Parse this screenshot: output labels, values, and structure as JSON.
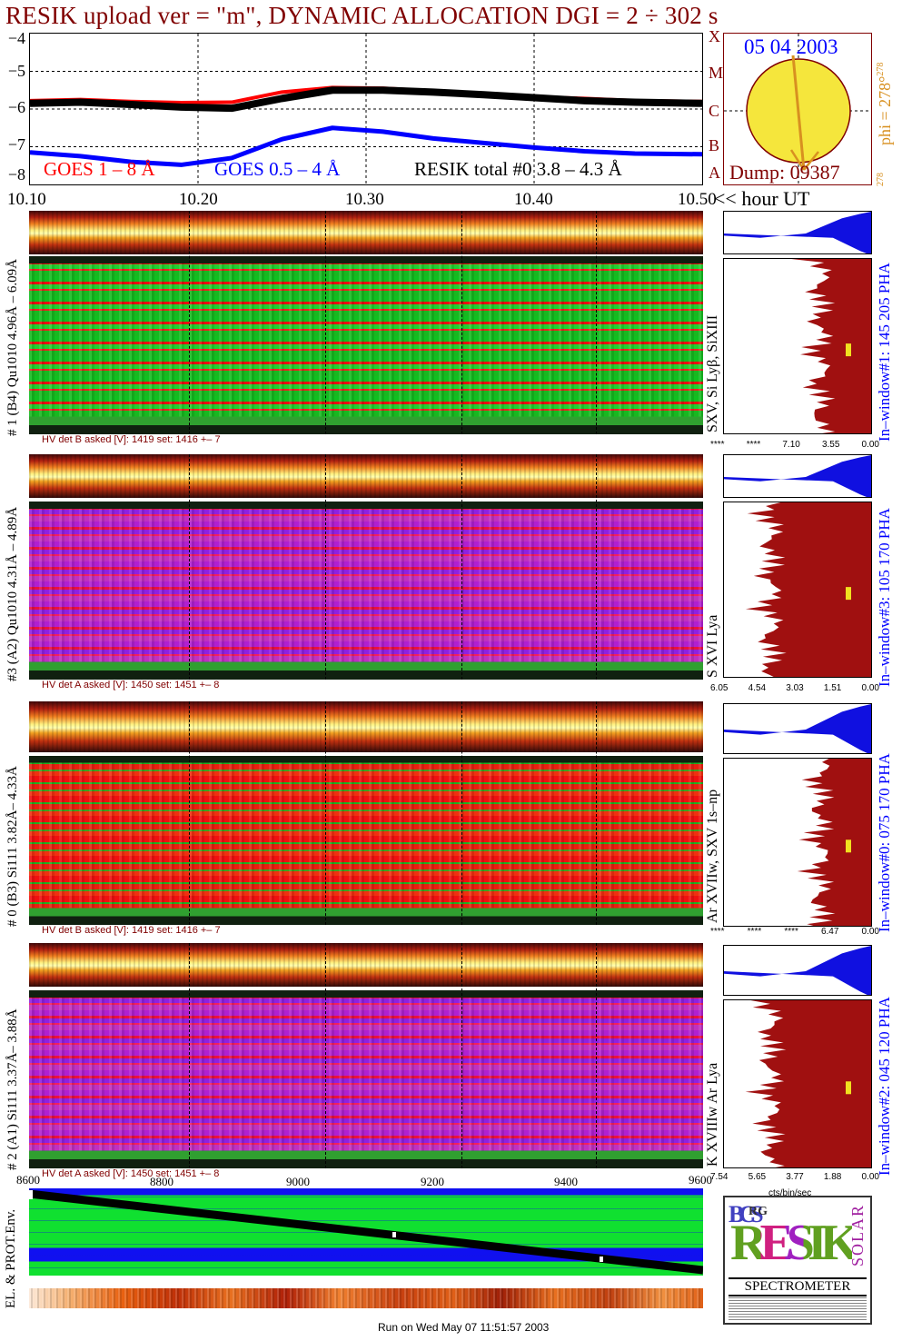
{
  "title": "RESIK upload ver = \"m\", DYNAMIC ALLOCATION  DGI =   2 ÷ 302 s",
  "goes": {
    "yticks": [
      "−4",
      "−5",
      "−6",
      "−7",
      "−8"
    ],
    "legend_goes_long": "GOES 1 – 8 Å",
    "legend_goes_short": "GOES 0.5 – 4 Å",
    "legend_resik": "RESIK total #0  3.8 – 4.3 Å",
    "xticks": [
      "10.10",
      "10.20",
      "10.30",
      "10.40",
      "10.50"
    ],
    "xunit": "<< hour UT",
    "colors": {
      "goes_long": "#ff0000",
      "goes_short": "#0000ff",
      "resik": "#000000"
    }
  },
  "sun": {
    "date": "05 04 2003",
    "dump": "Dump: 09387",
    "phi": "phi = 278°",
    "phi_sup": "278",
    "phi_low": "278",
    "classes": [
      "A",
      "B",
      "C",
      "M",
      "X"
    ]
  },
  "panels": [
    {
      "id": "1",
      "ylabel": "# 1 (B4) Qu1010 4.96Å – 6.09Å",
      "hv": "HV det B asked [V]:  1419 set:  1416 +–    7",
      "line_label": "SXV, Si Lyβ, SiXIII",
      "pha_label": "In–window#1:  145 205 PHA",
      "pha_ticks": [
        "****",
        "****",
        "7.10",
        "3.55",
        "0.00"
      ],
      "theme": "green"
    },
    {
      "id": "3",
      "ylabel": "#3 (A2) Qu1010  4.31Å – 4.89Å",
      "hv": "HV det A asked [V]:  1450 set:  1451 +–    8",
      "line_label": "S XVI Lya",
      "pha_label": "In–window#3:  105 170 PHA",
      "pha_ticks": [
        "6.05",
        "4.54",
        "3.03",
        "1.51",
        "0.00"
      ],
      "theme": "purple"
    },
    {
      "id": "0",
      "ylabel": "# 0 (B3) Si111  3.82Å– 4.33Å",
      "hv": "HV det B asked [V]:  1419 set:  1416 +–    7",
      "line_label": "Ar XVIIw,  SXV 1s–np",
      "pha_label": "In–window#0:  075 170 PHA",
      "pha_ticks": [
        "****",
        "****",
        "****",
        "6.47",
        "0.00"
      ],
      "theme": "red"
    },
    {
      "id": "2",
      "ylabel": "# 2 (A1) Si111  3.37Å– 3.88Å",
      "hv": "HV det A asked [V]:  1450 set:  1451 +–    8",
      "line_label": "K XVIIIw  Ar Lya",
      "pha_label": "In–window#2:  045 120 PHA",
      "pha_ticks": [
        "7.54",
        "5.65",
        "3.77",
        "1.88",
        "0.00"
      ],
      "theme": "purple"
    }
  ],
  "bottom": {
    "xticks": [
      "8600",
      "8800",
      "9000",
      "9200",
      "9400",
      "9600"
    ],
    "pha_unit": "cts/bin/sec",
    "ylabel": "EL. & PROT.Env."
  },
  "logo": {
    "bcs": "BCS",
    "rg": "RG",
    "resik": "RESIK",
    "solar": "SOLAR",
    "spectrometer": "SPECTROMETER"
  },
  "footer": "Run on Wed May 07 11:51:57 2003",
  "chart_data": [
    {
      "type": "line",
      "title": "RESIK upload ver = \"m\", DYNAMIC ALLOCATION  DGI =   2 ÷ 302 s",
      "xlabel": "hour UT",
      "ylabel": "",
      "xlim": [
        10.1,
        10.5
      ],
      "ylim": [
        -8,
        -4
      ],
      "x": [
        10.1,
        10.13,
        10.16,
        10.19,
        10.22,
        10.25,
        10.28,
        10.31,
        10.34,
        10.37,
        10.4,
        10.43,
        10.46,
        10.5
      ],
      "series": [
        {
          "name": "GOES 1 – 8 Å",
          "color": "#ff0000",
          "values": [
            -5.78,
            -5.75,
            -5.8,
            -5.83,
            -5.82,
            -5.55,
            -5.43,
            -5.45,
            -5.52,
            -5.6,
            -5.68,
            -5.72,
            -5.78,
            -5.8
          ]
        },
        {
          "name": "RESIK total #0  3.8 – 4.3 Å",
          "color": "#000000",
          "values": [
            -5.85,
            -5.82,
            -5.88,
            -5.95,
            -5.98,
            -5.72,
            -5.5,
            -5.5,
            -5.55,
            -5.62,
            -5.7,
            -5.78,
            -5.82,
            -5.85
          ]
        },
        {
          "name": "GOES 0.5 – 4 Å",
          "color": "#0000ff",
          "values": [
            -7.15,
            -7.25,
            -7.4,
            -7.48,
            -7.3,
            -6.8,
            -6.5,
            -6.6,
            -6.78,
            -6.9,
            -7.02,
            -7.12,
            -7.18,
            -7.2
          ]
        }
      ]
    }
  ]
}
